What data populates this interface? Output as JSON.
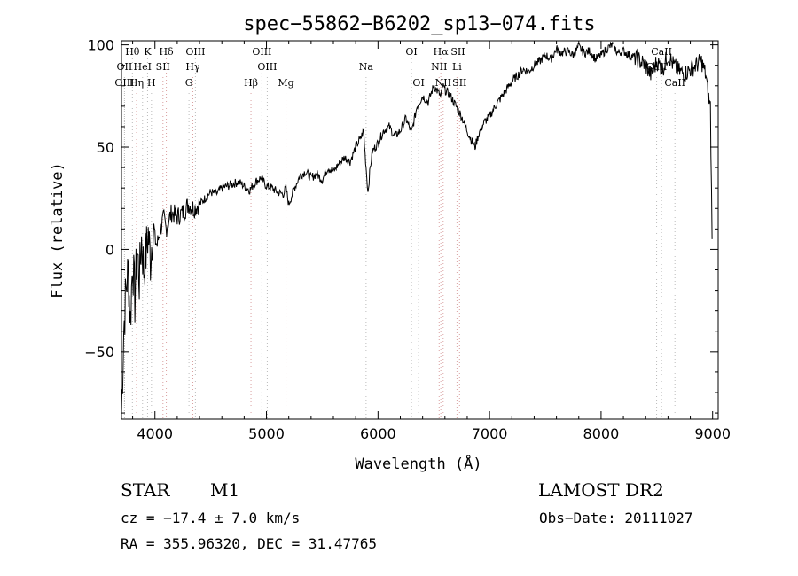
{
  "chart_data": {
    "type": "line",
    "title": "spec−55862−B6202_sp13−074.fits",
    "xlabel": "Wavelength (Å)",
    "ylabel": "Flux (relative)",
    "xlim": [
      3700,
      9050
    ],
    "ylim": [
      -83,
      102
    ],
    "x_ticks": [
      4000,
      5000,
      6000,
      7000,
      8000,
      9000
    ],
    "x_tick_labels": [
      "4000",
      "5000",
      "6000",
      "7000",
      "8000",
      "9000"
    ],
    "y_ticks": [
      -50,
      0,
      50,
      100
    ],
    "y_tick_labels": [
      "−50",
      "0",
      "50",
      "100"
    ],
    "grid": false,
    "legend": "none",
    "series": [
      {
        "x": [
          3700,
          3720,
          3740,
          3760,
          3780,
          3800,
          3820,
          3840,
          3860,
          3880,
          3900,
          3920,
          3940,
          3960,
          3980,
          4000,
          4020,
          4040,
          4060,
          4080,
          4100,
          4120,
          4150,
          4200,
          4250,
          4300,
          4350,
          4400,
          4450,
          4500,
          4550,
          4600,
          4650,
          4700,
          4750,
          4800,
          4850,
          4900,
          4950,
          5000,
          5050,
          5100,
          5150,
          5175,
          5200,
          5250,
          5300,
          5350,
          5400,
          5450,
          5500,
          5550,
          5600,
          5650,
          5700,
          5750,
          5800,
          5850,
          5870,
          5893,
          5910,
          5930,
          5950,
          6000,
          6050,
          6100,
          6150,
          6200,
          6250,
          6300,
          6350,
          6400,
          6450,
          6500,
          6550,
          6563,
          6580,
          6600,
          6650,
          6700,
          6750,
          6800,
          6850,
          6870,
          6900,
          6950,
          7000,
          7050,
          7100,
          7150,
          7200,
          7250,
          7300,
          7350,
          7400,
          7450,
          7500,
          7550,
          7600,
          7650,
          7700,
          7750,
          7800,
          7850,
          7900,
          7950,
          8000,
          8050,
          8100,
          8150,
          8200,
          8250,
          8300,
          8350,
          8400,
          8450,
          8500,
          8550,
          8600,
          8650,
          8700,
          8750,
          8800,
          8850,
          8900,
          8940,
          8960,
          8980,
          8995
        ],
        "y": [
          -80,
          -40,
          -20,
          -10,
          -35,
          -5,
          -25,
          0,
          -15,
          5,
          -10,
          -2,
          8,
          -5,
          10,
          5,
          2,
          8,
          12,
          15,
          10,
          14,
          18,
          16,
          18,
          22,
          20,
          22,
          25,
          28,
          27,
          30,
          31,
          32,
          33,
          31,
          29,
          33,
          35,
          31,
          30,
          28,
          27,
          30,
          22,
          30,
          36,
          38,
          35,
          37,
          34,
          40,
          38,
          42,
          45,
          43,
          50,
          55,
          58,
          40,
          28,
          40,
          48,
          52,
          58,
          60,
          55,
          58,
          64,
          57,
          70,
          75,
          72,
          80,
          76,
          74,
          80,
          78,
          75,
          70,
          65,
          58,
          52,
          50,
          56,
          62,
          65,
          70,
          74,
          78,
          82,
          85,
          88,
          87,
          90,
          92,
          95,
          93,
          98,
          96,
          97,
          95,
          99,
          96,
          97,
          93,
          95,
          98,
          100,
          96,
          97,
          95,
          94,
          92,
          90,
          85,
          92,
          88,
          95,
          90,
          87,
          86,
          88,
          90,
          92,
          85,
          75,
          70,
          5
        ]
      }
    ],
    "line_markers": [
      {
        "label": "Hθ",
        "x": 3798,
        "row": 1,
        "color": "#bbbbbb"
      },
      {
        "label": "K",
        "x": 3934,
        "row": 1,
        "color": "#bbbbbb"
      },
      {
        "label": "Hδ",
        "x": 4102,
        "row": 1,
        "color": "#d9a0a0"
      },
      {
        "label": "OIII",
        "x": 4363,
        "row": 1,
        "color": "#bbbbbb"
      },
      {
        "label": "OIII",
        "x": 4959,
        "row": 1,
        "color": "#bbbbbb"
      },
      {
        "label": "OI",
        "x": 6300,
        "row": 1,
        "color": "#bbbbbb"
      },
      {
        "label": "Hα",
        "x": 6563,
        "row": 1,
        "color": "#d9a0a0"
      },
      {
        "label": "SII",
        "x": 6717,
        "row": 1,
        "color": "#d9a0a0"
      },
      {
        "label": "CaII",
        "x": 8542,
        "row": 1,
        "color": "#bbbbbb"
      },
      {
        "label": "OII",
        "x": 3727,
        "row": 2,
        "color": "#bbbbbb"
      },
      {
        "label": "HeI",
        "x": 3889,
        "row": 2,
        "color": "#bbbbbb"
      },
      {
        "label": "SII",
        "x": 4072,
        "row": 2,
        "color": "#d9a0a0"
      },
      {
        "label": "Hγ",
        "x": 4340,
        "row": 2,
        "color": "#d9a0a0"
      },
      {
        "label": "OIII",
        "x": 5007,
        "row": 2,
        "color": "#bbbbbb"
      },
      {
        "label": "Na",
        "x": 5893,
        "row": 2,
        "color": "#bbbbbb"
      },
      {
        "label": "NII",
        "x": 6548,
        "row": 2,
        "color": "#d9a0a0"
      },
      {
        "label": "Li",
        "x": 6708,
        "row": 2,
        "color": "#d9a0a0"
      },
      {
        "label": "CaII",
        "x": 8498,
        "row": 2,
        "color": "#bbbbbb"
      },
      {
        "label": "OIII",
        "x": 3727,
        "row": 3,
        "color": "#bbbbbb"
      },
      {
        "label": "Hη",
        "x": 3835,
        "row": 3,
        "color": "#d9a0a0"
      },
      {
        "label": "H",
        "x": 3969,
        "row": 3,
        "color": "#bbbbbb"
      },
      {
        "label": "G",
        "x": 4305,
        "row": 3,
        "color": "#bbbbbb"
      },
      {
        "label": "Hβ",
        "x": 4861,
        "row": 3,
        "color": "#d9a0a0"
      },
      {
        "label": "Mg",
        "x": 5175,
        "row": 3,
        "color": "#d9a0a0"
      },
      {
        "label": "OI",
        "x": 6364,
        "row": 3,
        "color": "#bbbbbb"
      },
      {
        "label": "NII",
        "x": 6584,
        "row": 3,
        "color": "#d9a0a0"
      },
      {
        "label": "SII",
        "x": 6731,
        "row": 3,
        "color": "#d9a0a0"
      },
      {
        "label": "CaII",
        "x": 8662,
        "row": 3,
        "color": "#bbbbbb"
      }
    ]
  },
  "info": {
    "object_class": "STAR",
    "subclass": "M1",
    "survey": "LAMOST DR2",
    "redshift_text": "cz = −17.4 ± 7.0 km/s",
    "obs_date_text": "Obs−Date: 20111027",
    "coords_text": "RA = 355.96320, DEC =  31.47765"
  },
  "colors": {
    "spectrum": "#000000",
    "axes": "#000000"
  }
}
